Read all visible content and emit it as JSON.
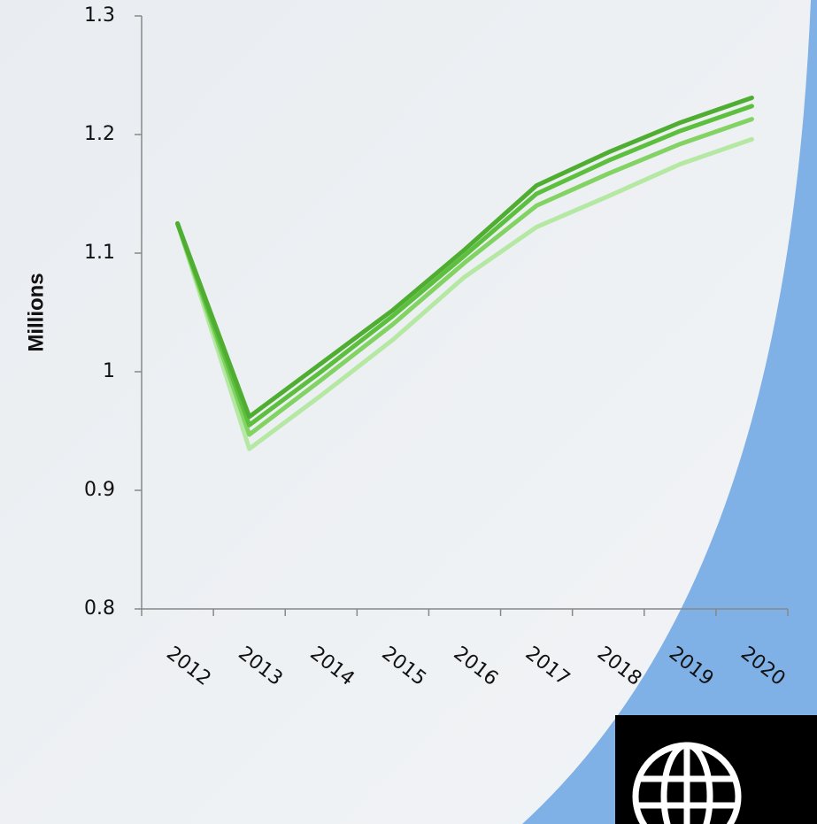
{
  "chart_data": {
    "type": "line",
    "y_label": "Millions",
    "categories": [
      "2012",
      "2013",
      "2014",
      "2015",
      "2016",
      "2017",
      "2018",
      "2019",
      "2020"
    ],
    "series": [
      {
        "color": "#4fae32",
        "values": [
          1.125,
          0.962,
          1.007,
          1.052,
          1.103,
          1.157,
          1.185,
          1.21,
          1.231
        ]
      },
      {
        "color": "#5dbf3e",
        "values": [
          1.125,
          0.955,
          1.0,
          1.047,
          1.098,
          1.15,
          1.178,
          1.203,
          1.224
        ]
      },
      {
        "color": "#82d364",
        "values": [
          1.125,
          0.947,
          0.993,
          1.04,
          1.092,
          1.14,
          1.167,
          1.192,
          1.213
        ]
      },
      {
        "color": "#b5e8a3",
        "values": [
          1.125,
          0.935,
          0.98,
          1.027,
          1.08,
          1.122,
          1.148,
          1.175,
          1.196
        ]
      }
    ],
    "ylim": [
      0.8,
      1.3
    ],
    "yticks": [
      0.8,
      0.9,
      1,
      1.1,
      1.2,
      1.3
    ]
  }
}
